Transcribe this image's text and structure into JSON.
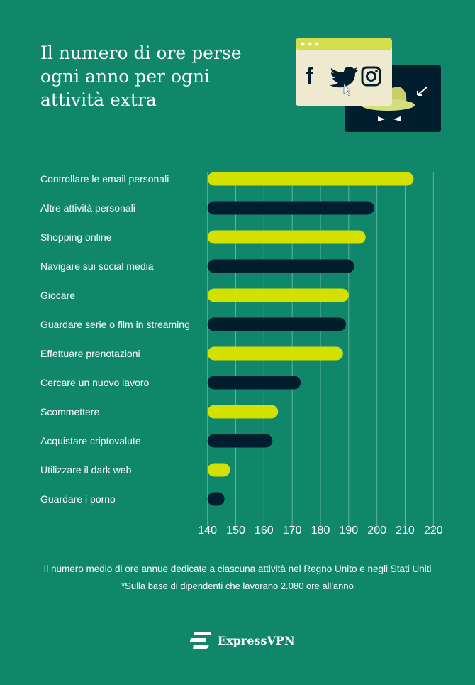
{
  "title": "Il numero di ore perse ogni anno per ogni attività extra",
  "colors": {
    "background": "#10876b",
    "lime": "#d4e100",
    "navy": "#001e2e",
    "grid": "#5fb39b"
  },
  "illustration": {
    "icons": [
      "facebook-icon",
      "twitter-icon",
      "instagram-icon",
      "hacker-hat-icon"
    ]
  },
  "chart_data": {
    "type": "bar",
    "orientation": "horizontal",
    "title": "",
    "xlabel": "",
    "ylabel": "",
    "xlim": [
      140,
      220
    ],
    "xticks": [
      "140",
      "150",
      "160",
      "170",
      "180",
      "190",
      "200",
      "210",
      "220"
    ],
    "grid": true,
    "categories": [
      "Controllare le email personali",
      "Altre attività personali",
      "Shopping online",
      "Navigare sui social media",
      "Giocare",
      "Guardare serie o film in streaming",
      "Effettuare prenotazioni",
      "Cercare un nuovo lavoro",
      "Scommettere",
      "Acquistare criptovalute",
      "Utilizzare il dark web",
      "Guardare i porno"
    ],
    "values": [
      213,
      199,
      196,
      192,
      190,
      189,
      188,
      173,
      165,
      163,
      148,
      146
    ],
    "bar_colors": [
      "#d4e100",
      "#001e2e",
      "#d4e100",
      "#001e2e",
      "#d4e100",
      "#001e2e",
      "#d4e100",
      "#001e2e",
      "#d4e100",
      "#001e2e",
      "#d4e100",
      "#001e2e"
    ]
  },
  "footer": {
    "caption": "Il numero medio di ore annue dedicate a ciascuna attività nel Regno Unito e negli Stati Uniti",
    "note": "*Sulla base di dipendenti che lavorano 2.080 ore all'anno"
  },
  "logo": {
    "text": "ExpressVPN"
  }
}
